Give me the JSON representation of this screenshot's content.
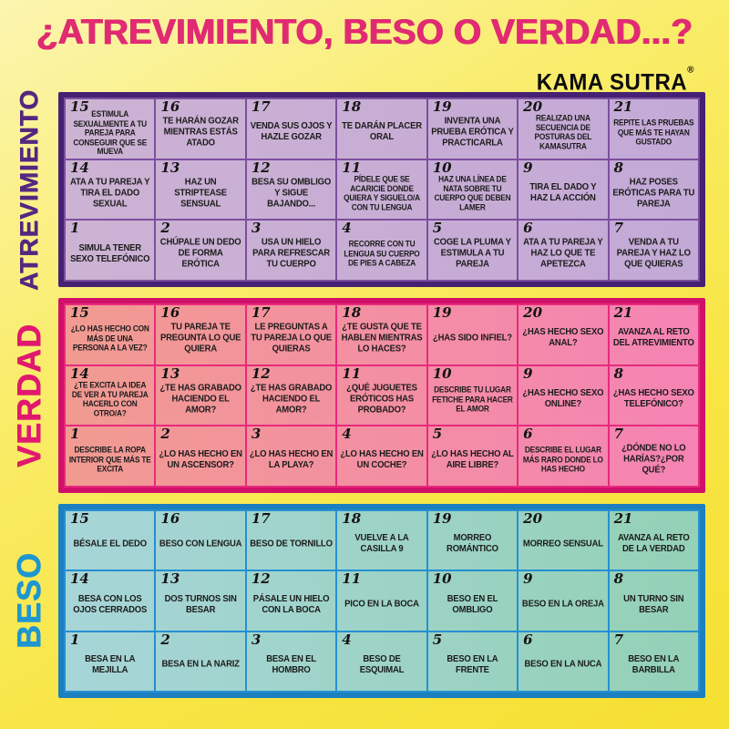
{
  "title": "¿ATREVIMIENTO, BESO O VERDAD...?",
  "title_color": "#e02a72",
  "brand": {
    "name": "KAMA SUTRA",
    "reg": "®"
  },
  "sections": [
    {
      "id": "atrevimiento",
      "label": "ATREVIMIENTO",
      "colors": {
        "label": "#54277f",
        "frame": "#462173",
        "line": "#7b4f9e",
        "cell_from": "#ccb2d3",
        "cell_to": "#c3a9d6"
      },
      "rows": [
        [
          {
            "num": "15",
            "text": "ESTIMULA SEXUALMENTE A TU PAREJA PARA CONSEGUIR QUE SE MUEVA"
          },
          {
            "num": "16",
            "text": "TE HARÁN GOZAR MIENTRAS ESTÁS ATADO"
          },
          {
            "num": "17",
            "text": "VENDA SUS OJOS Y HAZLE GOZAR"
          },
          {
            "num": "18",
            "text": "TE DARÁN PLACER ORAL"
          },
          {
            "num": "19",
            "text": "INVENTA UNA PRUEBA ERÓTICA Y PRACTICARLA"
          },
          {
            "num": "20",
            "text": "REALIZAD UNA SECUENCIA DE POSTURAS DEL KAMASUTRA"
          },
          {
            "num": "21",
            "text": "REPITE LAS PRUEBAS QUE MÁS TE HAYAN GUSTADO"
          }
        ],
        [
          {
            "num": "14",
            "text": "ATA A TU PAREJA Y TIRA EL DADO SEXUAL"
          },
          {
            "num": "13",
            "text": "HAZ UN STRIPTEASE SENSUAL"
          },
          {
            "num": "12",
            "text": "BESA SU OMBLIGO Y SIGUE BAJANDO..."
          },
          {
            "num": "11",
            "text": "PÍDELE QUE SE ACARICIE DONDE QUIERA Y SIGUELO/A CON TU LENGUA"
          },
          {
            "num": "10",
            "text": "HAZ UNA LÍNEA DE NATA SOBRE TU CUERPO QUE DEBEN LAMER"
          },
          {
            "num": "9",
            "text": "TIRA EL DADO Y HAZ LA ACCIÓN"
          },
          {
            "num": "8",
            "text": "HAZ POSES ERÓTICAS PARA TU PAREJA"
          }
        ],
        [
          {
            "num": "1",
            "text": "SIMULA TENER SEXO TELEFÓNICO"
          },
          {
            "num": "2",
            "text": "CHÚPALE UN DEDO DE FORMA ERÓTICA"
          },
          {
            "num": "3",
            "text": "USA UN HIELO PARA REFRESCAR TU CUERPO"
          },
          {
            "num": "4",
            "text": "RECORRE CON TU LENGUA SU CUERPO DE PIES A CABEZA"
          },
          {
            "num": "5",
            "text": "COGE LA PLUMA Y ESTIMULA A TU PAREJA"
          },
          {
            "num": "6",
            "text": "ATA A TU PAREJA Y HAZ LO QUE TE APETEZCA"
          },
          {
            "num": "7",
            "text": "VENDA A TU PAREJA Y HAZ LO QUE QUIERAS"
          }
        ]
      ]
    },
    {
      "id": "verdad",
      "label": "VERDAD",
      "colors": {
        "label": "#e0196f",
        "frame": "#d01069",
        "line": "#e82a7d",
        "cell_from": "#f19b91",
        "cell_to": "#f583b4"
      },
      "rows": [
        [
          {
            "num": "15",
            "text": "¿LO HAS HECHO CON MÁS DE UNA PERSONA A LA VEZ?"
          },
          {
            "num": "16",
            "text": "TU PAREJA TE PREGUNTA LO QUE QUIERA"
          },
          {
            "num": "17",
            "text": "LE PREGUNTAS A TU PAREJA LO QUE QUIERAS"
          },
          {
            "num": "18",
            "text": "¿TE GUSTA QUE TE HABLEN MIENTRAS LO HACES?"
          },
          {
            "num": "19",
            "text": "¿HAS SIDO INFIEL?"
          },
          {
            "num": "20",
            "text": "¿HAS HECHO SEXO ANAL?"
          },
          {
            "num": "21",
            "text": "AVANZA AL RETO DEL ATREVIMIENTO"
          }
        ],
        [
          {
            "num": "14",
            "text": "¿TE EXCITA LA IDEA DE VER A TU PAREJA HACERLO CON OTRO/A?"
          },
          {
            "num": "13",
            "text": "¿TE HAS GRABADO HACIENDO EL AMOR?"
          },
          {
            "num": "12",
            "text": "¿TE HAS GRABADO HACIENDO EL AMOR?"
          },
          {
            "num": "11",
            "text": "¿QUÉ JUGUETES ERÓTICOS HAS PROBADO?"
          },
          {
            "num": "10",
            "text": "DESCRIBE TU LUGAR FETICHE PARA HACER EL AMOR"
          },
          {
            "num": "9",
            "text": "¿HAS HECHO SEXO ONLINE?"
          },
          {
            "num": "8",
            "text": "¿HAS HECHO SEXO TELEFÓNICO?"
          }
        ],
        [
          {
            "num": "1",
            "text": "DESCRIBE LA ROPA INTERIOR QUE MÁS TE EXCITA"
          },
          {
            "num": "2",
            "text": "¿LO HAS HECHO EN UN ASCENSOR?"
          },
          {
            "num": "3",
            "text": "¿LO HAS HECHO EN LA PLAYA?"
          },
          {
            "num": "4",
            "text": "¿LO HAS HECHO EN UN COCHE?"
          },
          {
            "num": "5",
            "text": "¿LO HAS HECHO AL AIRE LIBRE?"
          },
          {
            "num": "6",
            "text": "DESCRIBE EL LUGAR MÁS RARO DONDE LO HAS HECHO"
          },
          {
            "num": "7",
            "text": "¿DÓNDE NO LO HARÍAS?¿POR QUÉ?"
          }
        ]
      ]
    },
    {
      "id": "beso",
      "label": "BESO",
      "colors": {
        "label": "#1e96cf",
        "frame": "#1b7fc0",
        "line": "#2490d2",
        "cell_from": "#a7d5d8",
        "cell_to": "#94d1b6"
      },
      "rows": [
        [
          {
            "num": "15",
            "text": "BÉSALE EL DEDO"
          },
          {
            "num": "16",
            "text": "BESO CON LENGUA"
          },
          {
            "num": "17",
            "text": "BESO DE TORNILLO"
          },
          {
            "num": "18",
            "text": "VUELVE A LA CASILLA 9"
          },
          {
            "num": "19",
            "text": "MORREO ROMÁNTICO"
          },
          {
            "num": "20",
            "text": "MORREO SENSUAL"
          },
          {
            "num": "21",
            "text": "AVANZA AL RETO DE LA VERDAD"
          }
        ],
        [
          {
            "num": "14",
            "text": "BESA CON LOS OJOS CERRADOS"
          },
          {
            "num": "13",
            "text": "DOS TURNOS SIN BESAR"
          },
          {
            "num": "12",
            "text": "PÁSALE UN HIELO CON LA BOCA"
          },
          {
            "num": "11",
            "text": "PICO EN LA BOCA"
          },
          {
            "num": "10",
            "text": "BESO EN EL OMBLIGO"
          },
          {
            "num": "9",
            "text": "BESO EN LA OREJA"
          },
          {
            "num": "8",
            "text": "UN TURNO SIN BESAR"
          }
        ],
        [
          {
            "num": "1",
            "text": "BESA EN LA MEJILLA"
          },
          {
            "num": "2",
            "text": "BESA EN LA NARIZ"
          },
          {
            "num": "3",
            "text": "BESA EN EL HOMBRO"
          },
          {
            "num": "4",
            "text": "BESO DE ESQUIMAL"
          },
          {
            "num": "5",
            "text": "BESO EN LA FRENTE"
          },
          {
            "num": "6",
            "text": "BESO EN LA NUCA"
          },
          {
            "num": "7",
            "text": "BESO EN LA BARBILLA"
          }
        ]
      ]
    }
  ]
}
